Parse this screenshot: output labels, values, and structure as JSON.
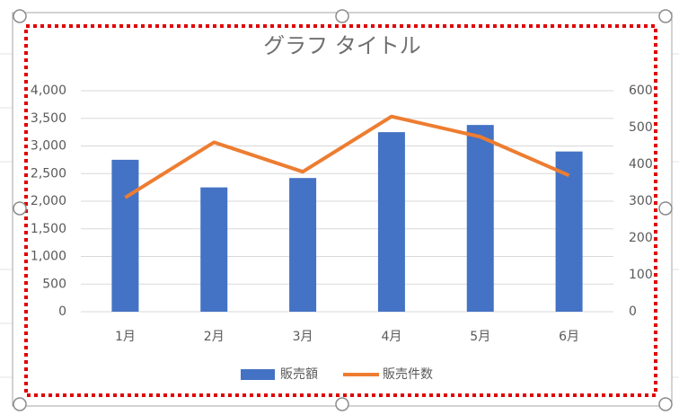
{
  "chart_data": {
    "type": "combo",
    "title": "グラフ タイトル",
    "categories": [
      "1月",
      "2月",
      "3月",
      "4月",
      "5月",
      "6月"
    ],
    "series": [
      {
        "name": "販売額",
        "type": "bar",
        "color": "#4472c4",
        "values": [
          2750,
          2250,
          2420,
          3250,
          3380,
          2900
        ]
      },
      {
        "name": "販売件数",
        "type": "line",
        "axis": "y2",
        "color": "#ed7d31",
        "values": [
          310,
          460,
          380,
          530,
          475,
          370
        ]
      }
    ],
    "ylim": [
      0,
      4000
    ],
    "yticks": [
      0,
      500,
      {
        "value": 1000,
        "label": "1,000"
      },
      {
        "value": 1500,
        "label": "1,500"
      },
      {
        "value": 2000,
        "label": "2,000"
      },
      {
        "value": 2500,
        "label": "2,500"
      },
      {
        "value": 3000,
        "label": "3,000"
      },
      {
        "value": 3500,
        "label": "3,500"
      },
      {
        "value": 4000,
        "label": "4,000"
      }
    ],
    "y2lim": [
      0,
      600
    ],
    "y2ticks": [
      0,
      100,
      200,
      300,
      400,
      500,
      600
    ],
    "grid": true,
    "legend": "bottom"
  }
}
